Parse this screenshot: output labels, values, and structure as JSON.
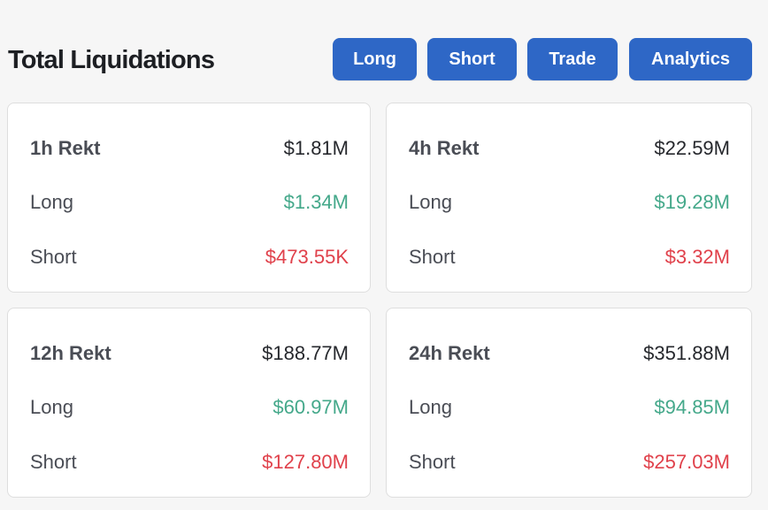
{
  "header": {
    "title": "Total Liquidations",
    "buttons": {
      "long": "Long",
      "short": "Short",
      "trade": "Trade",
      "analytics": "Analytics"
    }
  },
  "colors": {
    "button_bg": "#2e67c6",
    "long_value": "#44a88a",
    "short_value": "#e0414b",
    "text": "#4a4d55"
  },
  "cards": [
    {
      "title": "1h Rekt",
      "total": "$1.81M",
      "long_label": "Long",
      "long_value": "$1.34M",
      "short_label": "Short",
      "short_value": "$473.55K"
    },
    {
      "title": "4h Rekt",
      "total": "$22.59M",
      "long_label": "Long",
      "long_value": "$19.28M",
      "short_label": "Short",
      "short_value": "$3.32M"
    },
    {
      "title": "12h Rekt",
      "total": "$188.77M",
      "long_label": "Long",
      "long_value": "$60.97M",
      "short_label": "Short",
      "short_value": "$127.80M"
    },
    {
      "title": "24h Rekt",
      "total": "$351.88M",
      "long_label": "Long",
      "long_value": "$94.85M",
      "short_label": "Short",
      "short_value": "$257.03M"
    }
  ]
}
